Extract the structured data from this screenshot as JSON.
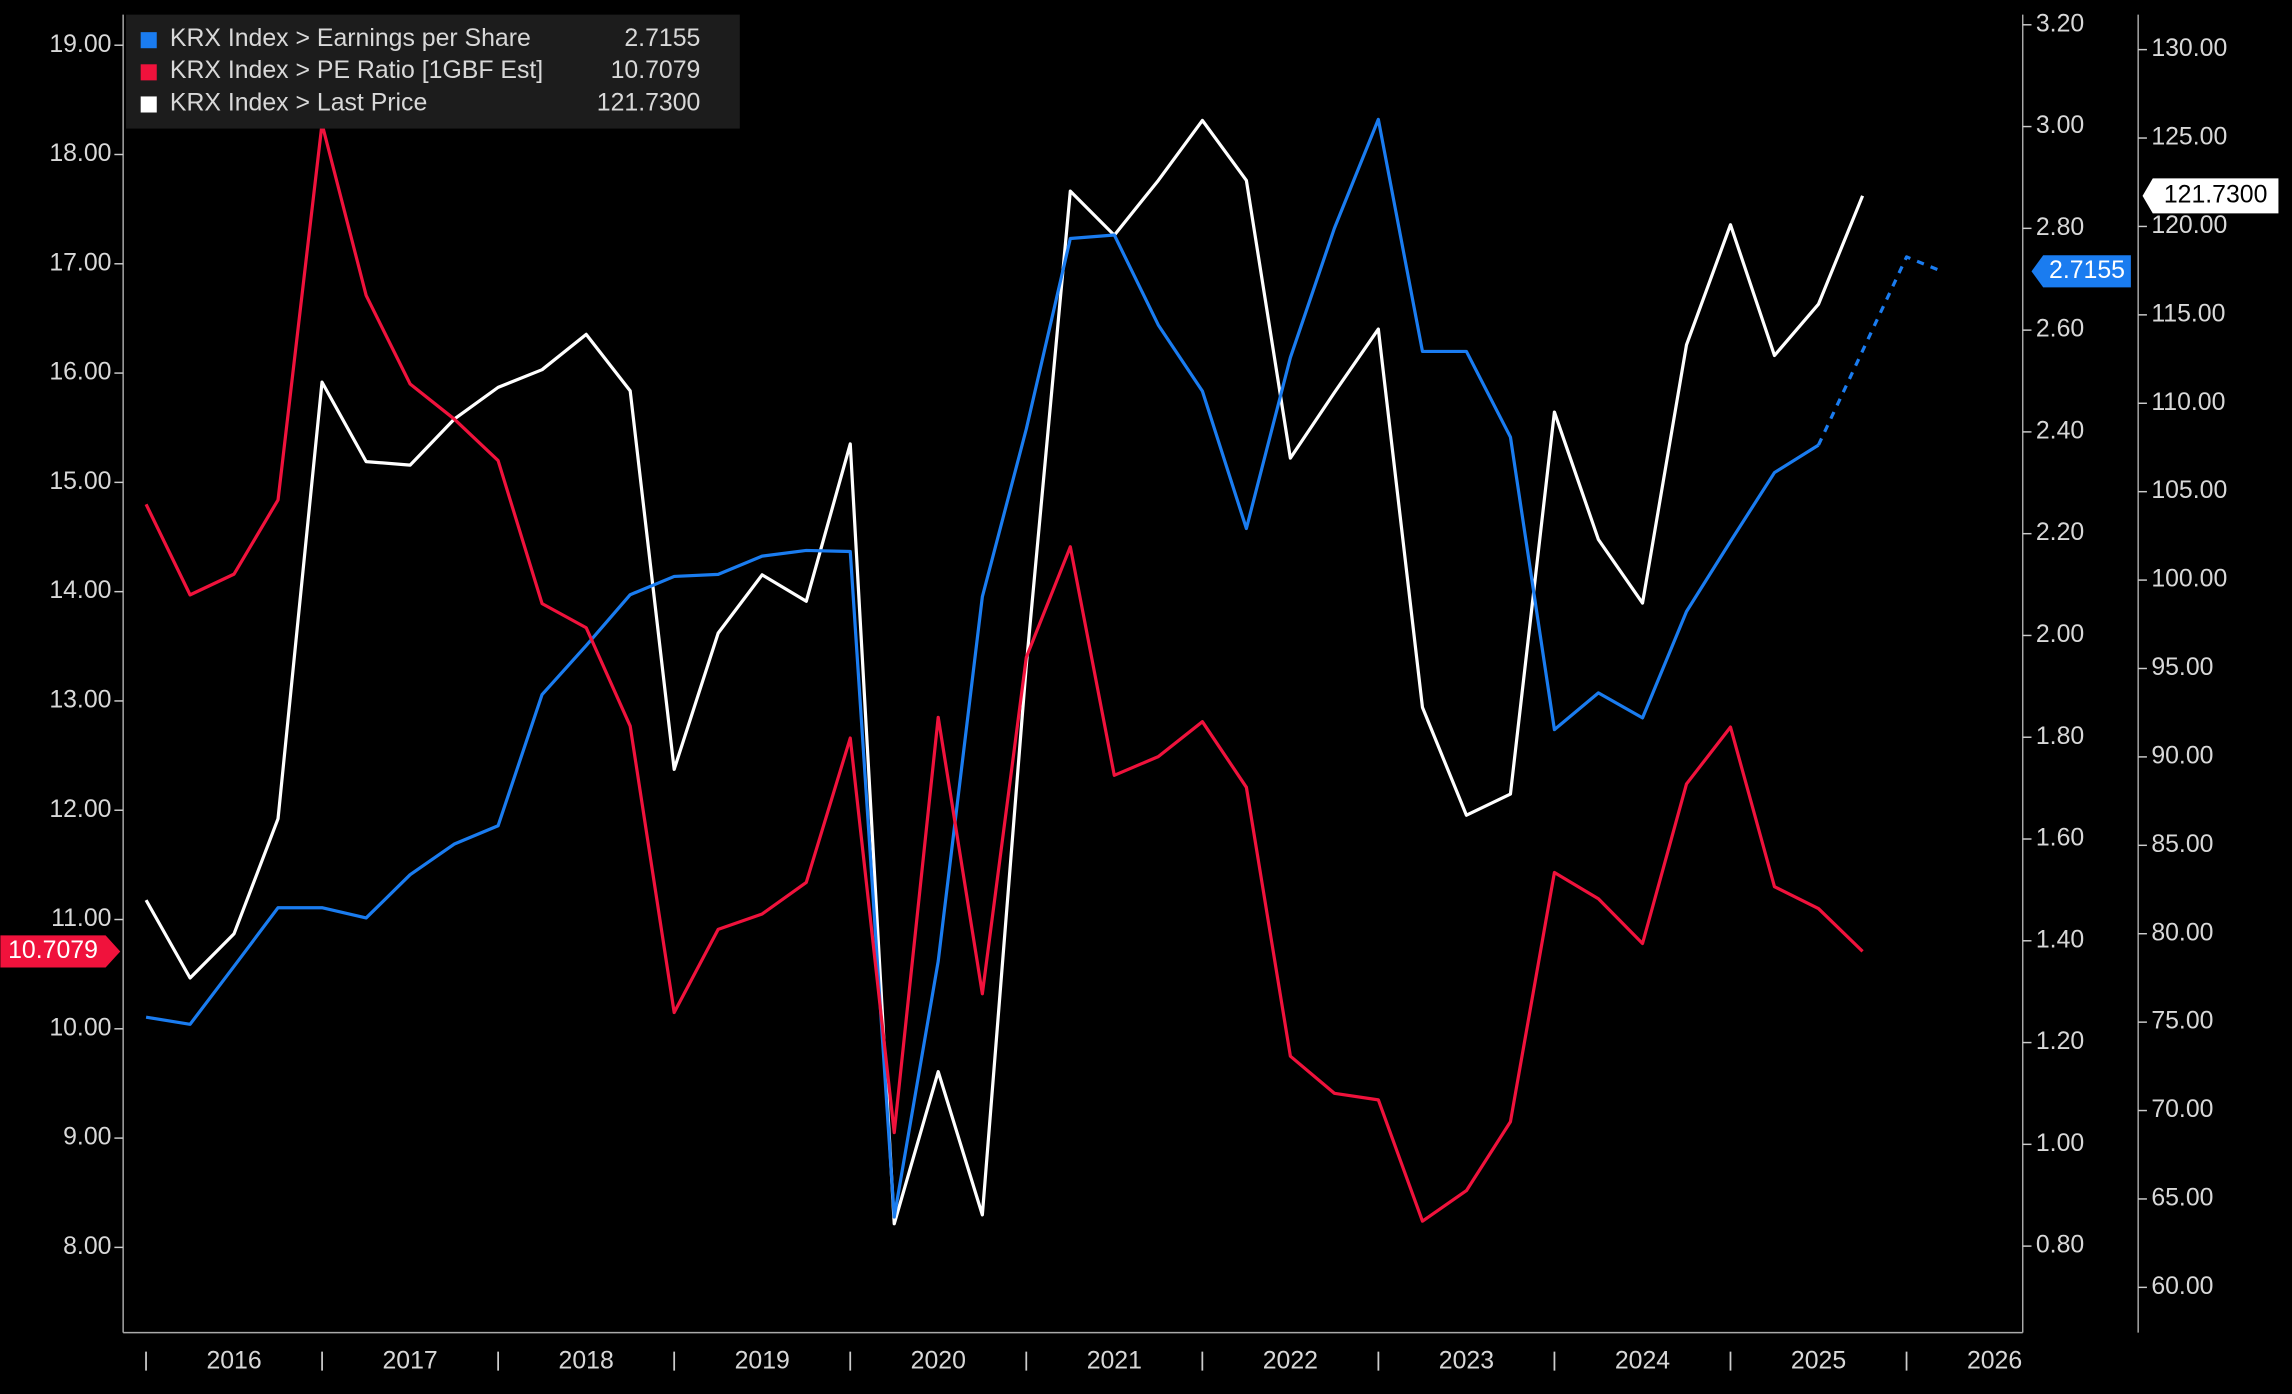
{
  "chart_data": {
    "type": "line",
    "grid": true,
    "legend": "top-left",
    "xlim": [
      2015.87,
      2026.66
    ],
    "xticks": [
      2016,
      2017,
      2018,
      2019,
      2020,
      2021,
      2022,
      2023,
      2024,
      2025,
      2026
    ],
    "ylim": [
      7.22,
      19.28
    ],
    "yticks": [
      {
        "value": 8,
        "label": "8.00"
      },
      {
        "value": 9,
        "label": "9.00"
      },
      {
        "value": 10,
        "label": "10.00"
      },
      {
        "value": 11,
        "label": "11.00"
      },
      {
        "value": 12,
        "label": "12.00"
      },
      {
        "value": 13,
        "label": "13.00"
      },
      {
        "value": 14,
        "label": "14.00"
      },
      {
        "value": 15,
        "label": "15.00"
      },
      {
        "value": 16,
        "label": "16.00"
      },
      {
        "value": 17,
        "label": "17.00"
      },
      {
        "value": 18,
        "label": "18.00"
      },
      {
        "value": 19,
        "label": "19.00"
      }
    ],
    "y2lim": [
      0.63,
      3.22
    ],
    "y2ticks": [
      {
        "value": 0.8,
        "label": "0.80"
      },
      {
        "value": 1,
        "label": "1.00"
      },
      {
        "value": 1.2,
        "label": "1.20"
      },
      {
        "value": 1.4,
        "label": "1.40"
      },
      {
        "value": 1.6,
        "label": "1.60"
      },
      {
        "value": 1.8,
        "label": "1.80"
      },
      {
        "value": 2,
        "label": "2.00"
      },
      {
        "value": 2.2,
        "label": "2.20"
      },
      {
        "value": 2.4,
        "label": "2.40"
      },
      {
        "value": 2.6,
        "label": "2.60"
      },
      {
        "value": 2.8,
        "label": "2.80"
      },
      {
        "value": 3,
        "label": "3.00"
      },
      {
        "value": 3.2,
        "label": "3.20"
      }
    ],
    "y3lim": [
      57.44,
      131.98
    ],
    "y3ticks": [
      {
        "value": 60,
        "label": "60.00"
      },
      {
        "value": 65,
        "label": "65.00"
      },
      {
        "value": 70,
        "label": "70.00"
      },
      {
        "value": 75,
        "label": "75.00"
      },
      {
        "value": 80,
        "label": "80.00"
      },
      {
        "value": 85,
        "label": "85.00"
      },
      {
        "value": 90,
        "label": "90.00"
      },
      {
        "value": 95,
        "label": "95.00"
      },
      {
        "value": 100,
        "label": "100.00"
      },
      {
        "value": 105,
        "label": "105.00"
      },
      {
        "value": 110,
        "label": "110.00"
      },
      {
        "value": 115,
        "label": "115.00"
      },
      {
        "value": 120,
        "label": "120.00"
      },
      {
        "value": 125,
        "label": "125.00"
      },
      {
        "value": 130,
        "label": "130.00"
      }
    ],
    "series": [
      {
        "name": "KRX Index > Earnings per Share",
        "color": "#1a7cf0",
        "axis": "y2",
        "last_label": "2.7155",
        "dashed_after_x": 2025.5,
        "x": [
          2016,
          2016.25,
          2016.5,
          2016.75,
          2017,
          2017.25,
          2017.5,
          2017.75,
          2018,
          2018.25,
          2018.5,
          2018.75,
          2019,
          2019.25,
          2019.5,
          2019.75,
          2020,
          2020.25,
          2020.5,
          2020.75,
          2021,
          2021.25,
          2021.5,
          2021.75,
          2022,
          2022.25,
          2022.5,
          2022.75,
          2023,
          2023.25,
          2023.5,
          2023.75,
          2024,
          2024.25,
          2024.5,
          2024.75,
          2025,
          2025.25,
          2025.5,
          2026,
          2026.2
        ],
        "values": [
          1.25,
          1.236,
          1.35,
          1.465,
          1.465,
          1.445,
          1.53,
          1.59,
          1.626,
          1.884,
          1.98,
          2.08,
          2.116,
          2.12,
          2.156,
          2.167,
          2.165,
          0.857,
          1.36,
          2.076,
          2.406,
          2.78,
          2.787,
          2.61,
          2.48,
          2.21,
          2.546,
          2.8,
          3.014,
          2.558,
          2.558,
          2.39,
          1.815,
          1.887,
          1.838,
          2.047,
          2.185,
          2.32,
          2.374,
          2.744,
          2.7155
        ]
      },
      {
        "name": "KRX Index > PE Ratio [1GBF Est]",
        "color": "#f0123c",
        "axis": "y",
        "last_label": "10.7079",
        "x": [
          2016,
          2016.25,
          2016.5,
          2016.75,
          2017,
          2017.25,
          2017.5,
          2017.75,
          2018,
          2018.25,
          2018.5,
          2018.75,
          2019,
          2019.25,
          2019.5,
          2019.75,
          2020,
          2020.25,
          2020.5,
          2020.75,
          2021,
          2021.25,
          2021.5,
          2021.75,
          2022,
          2022.25,
          2022.5,
          2022.75,
          2023,
          2023.25,
          2023.5,
          2023.75,
          2024,
          2024.25,
          2024.5,
          2024.75,
          2025,
          2025.25,
          2025.5,
          2025.75
        ],
        "values": [
          14.8,
          13.97,
          14.16,
          14.84,
          18.28,
          16.71,
          15.9,
          15.58,
          15.2,
          13.89,
          13.67,
          12.77,
          10.15,
          10.91,
          11.05,
          11.34,
          12.66,
          9.05,
          12.85,
          10.32,
          13.4,
          14.41,
          12.32,
          12.49,
          12.81,
          12.21,
          9.75,
          9.41,
          9.35,
          8.24,
          8.52,
          9.15,
          11.43,
          11.19,
          10.78,
          12.24,
          12.76,
          11.3,
          11.1,
          10.7079
        ]
      },
      {
        "name": "KRX Index > Last Price",
        "color": "#ffffff",
        "axis": "y3",
        "last_label": "121.7300",
        "x": [
          2016,
          2016.25,
          2016.5,
          2016.75,
          2017,
          2017.25,
          2017.5,
          2017.75,
          2018,
          2018.25,
          2018.5,
          2018.75,
          2019,
          2019.25,
          2019.5,
          2019.75,
          2020,
          2020.25,
          2020.5,
          2020.75,
          2021,
          2021.25,
          2021.5,
          2021.75,
          2022,
          2022.25,
          2022.5,
          2022.75,
          2023,
          2023.25,
          2023.5,
          2023.75,
          2024,
          2024.25,
          2024.5,
          2024.75,
          2025,
          2025.25,
          2025.5,
          2025.75
        ],
        "values": [
          81.9,
          77.5,
          80.0,
          86.5,
          111.2,
          106.7,
          106.5,
          109.1,
          110.9,
          111.9,
          113.9,
          110.7,
          89.3,
          97.0,
          100.3,
          98.8,
          107.7,
          63.6,
          72.2,
          64.1,
          95.2,
          122.0,
          119.5,
          122.6,
          126.0,
          122.6,
          106.9,
          110.6,
          114.2,
          92.8,
          86.7,
          87.9,
          109.5,
          102.3,
          98.7,
          113.3,
          120.1,
          112.7,
          115.6,
          121.73
        ]
      }
    ]
  }
}
